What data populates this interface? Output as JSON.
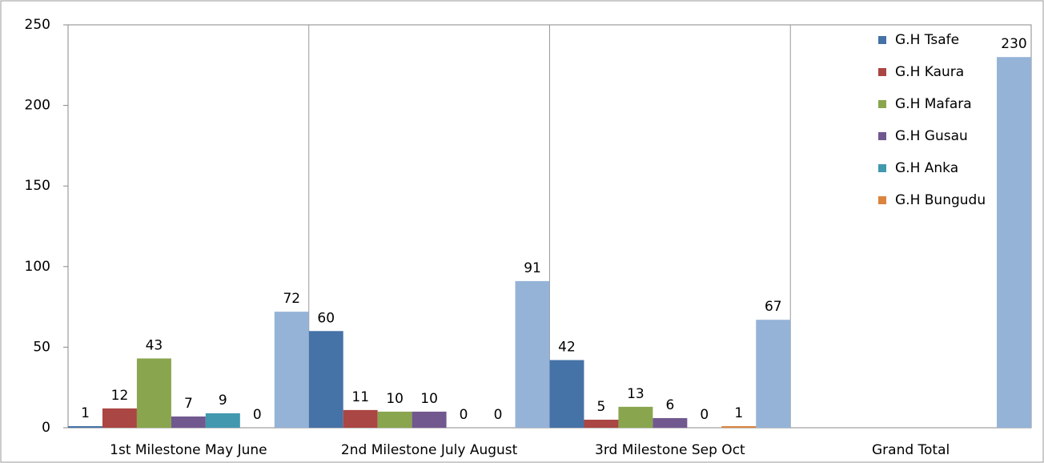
{
  "chart_data": {
    "type": "bar",
    "categories": [
      "1st Milestone May June",
      "2nd Milestone July August",
      "3rd Milestone Sep Oct",
      "Grand Total"
    ],
    "series": [
      {
        "name": "G.H Tsafe",
        "color": "#4572a7",
        "values": [
          1,
          60,
          42,
          null
        ]
      },
      {
        "name": "G.H Kaura",
        "color": "#aa4643",
        "values": [
          12,
          11,
          5,
          null
        ]
      },
      {
        "name": "G.H Mafara",
        "color": "#89a54e",
        "values": [
          43,
          10,
          13,
          null
        ]
      },
      {
        "name": "G.H Gusau",
        "color": "#71588f",
        "values": [
          7,
          10,
          6,
          null
        ]
      },
      {
        "name": "G.H Anka",
        "color": "#4198af",
        "values": [
          9,
          0,
          0,
          null
        ]
      },
      {
        "name": "G.H Bungudu",
        "color": "#db843d",
        "values": [
          0,
          0,
          1,
          null
        ]
      },
      {
        "name": null,
        "color": "#95b3d7",
        "values": [
          72,
          91,
          67,
          230
        ]
      }
    ],
    "ylim": [
      0,
      250
    ],
    "yticks": [
      0,
      50,
      100,
      150,
      200,
      250
    ],
    "grid": true,
    "legend": "top-right"
  }
}
